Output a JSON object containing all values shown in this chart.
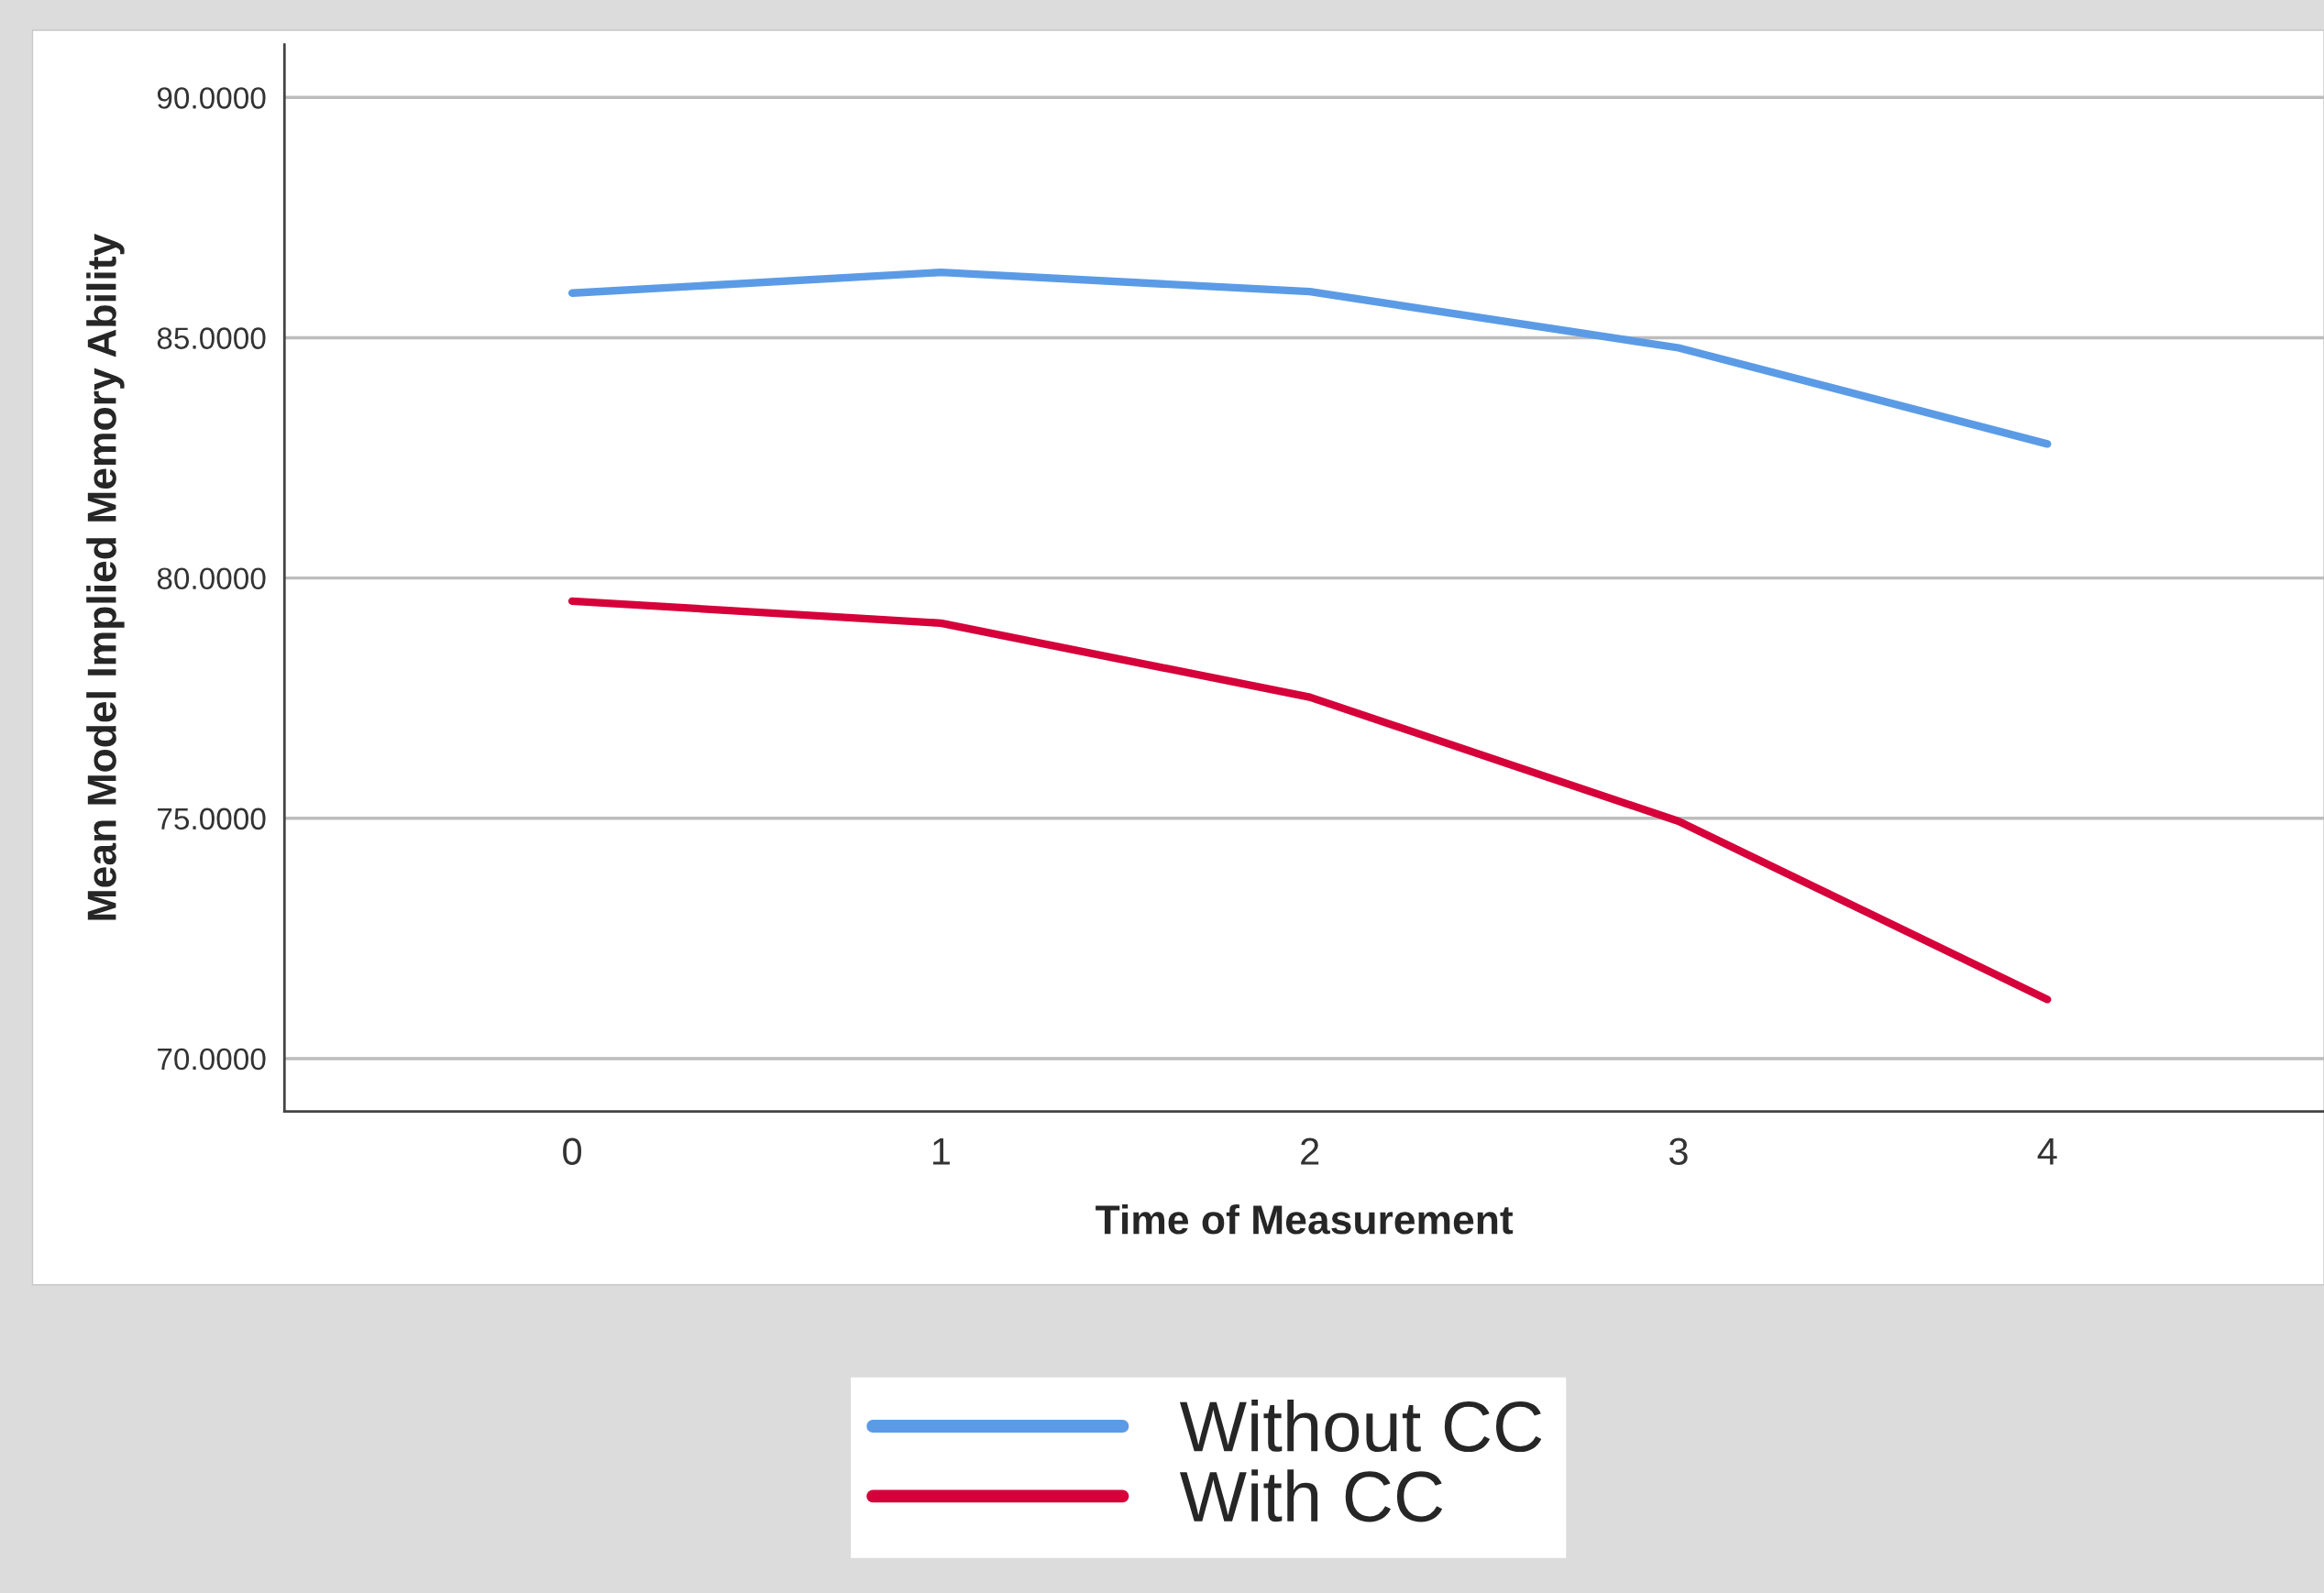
{
  "chart_data": {
    "type": "line",
    "xlabel": "Time of Measurement",
    "ylabel": "Mean Model Implied Memory Ability",
    "x": [
      0,
      1,
      2,
      3,
      4
    ],
    "series": [
      {
        "name": "Without CC",
        "color": "#5b9be6",
        "values": [
          85.93,
          86.36,
          85.96,
          84.79,
          82.79
        ]
      },
      {
        "name": "With CC",
        "color": "#d6003a",
        "values": [
          79.52,
          79.06,
          77.52,
          74.94,
          71.23
        ]
      }
    ],
    "xlim": [
      -0.78,
      4.75
    ],
    "ylim": [
      68.9,
      91.1
    ],
    "xticks": [
      0,
      1,
      2,
      3,
      4
    ],
    "yticks": [
      {
        "value": 70,
        "label": "70.0000"
      },
      {
        "value": 75,
        "label": "75.0000"
      },
      {
        "value": 80,
        "label": "80.0000"
      },
      {
        "value": 85,
        "label": "85.0000"
      },
      {
        "value": 90,
        "label": "90.0000"
      }
    ],
    "grid": "y",
    "legend": "bottom",
    "line_style": "solid",
    "marker": "none"
  }
}
